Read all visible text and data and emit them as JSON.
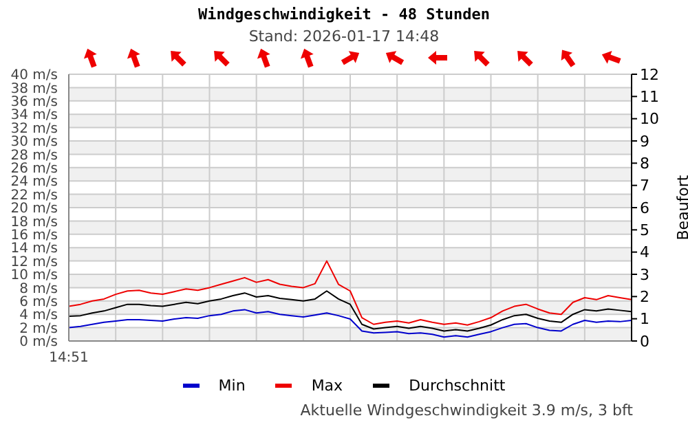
{
  "chart_data": {
    "type": "line",
    "title": "Windgeschwindigkeit - 48 Stunden",
    "subtitle": "Stand: 2026-01-17 14:48",
    "y2label": "Beaufort",
    "annotations": [
      "Aktuelle Windgeschwindigkeit 3.9 m/s, 3 bft"
    ],
    "categories": [
      "14:51",
      null,
      null,
      null,
      null,
      null,
      null,
      null,
      null,
      null,
      null,
      null,
      null,
      null,
      null,
      null,
      null,
      null,
      null,
      null,
      null,
      null,
      null,
      null,
      null,
      null,
      null,
      null,
      null,
      null,
      null,
      null,
      null,
      null,
      null,
      null,
      null,
      null,
      null,
      null,
      null,
      null,
      null,
      null,
      null,
      null,
      null,
      null,
      null
    ],
    "ylim": [
      0,
      40
    ],
    "yticks": [
      {
        "value": 0,
        "label": "0 m/s"
      },
      {
        "value": 2,
        "label": "2 m/s"
      },
      {
        "value": 4,
        "label": "4 m/s"
      },
      {
        "value": 6,
        "label": "6 m/s"
      },
      {
        "value": 8,
        "label": "8 m/s"
      },
      {
        "value": 10,
        "label": "10 m/s"
      },
      {
        "value": 12,
        "label": "12 m/s"
      },
      {
        "value": 14,
        "label": "14 m/s"
      },
      {
        "value": 16,
        "label": "16 m/s"
      },
      {
        "value": 18,
        "label": "18 m/s"
      },
      {
        "value": 20,
        "label": "20 m/s"
      },
      {
        "value": 22,
        "label": "22 m/s"
      },
      {
        "value": 24,
        "label": "24 m/s"
      },
      {
        "value": 26,
        "label": "26 m/s"
      },
      {
        "value": 28,
        "label": "28 m/s"
      },
      {
        "value": 30,
        "label": "30 m/s"
      },
      {
        "value": 32,
        "label": "32 m/s"
      },
      {
        "value": 34,
        "label": "34 m/s"
      },
      {
        "value": 36,
        "label": "36 m/s"
      },
      {
        "value": 38,
        "label": "38 m/s"
      },
      {
        "value": 40,
        "label": "40 m/s"
      }
    ],
    "y2lim": [
      0,
      12
    ],
    "y2ticks": [
      0,
      1,
      2,
      3,
      4,
      5,
      6,
      7,
      8,
      9,
      10,
      11,
      12
    ],
    "grid": true,
    "legend": "bottom",
    "marker": "none",
    "line_style": "solid",
    "series": [
      {
        "name": "Min",
        "color": "#0000cc",
        "values": [
          2,
          2.2,
          2.5,
          2.8,
          3,
          3.2,
          3.2,
          3.1,
          3,
          3.3,
          3.5,
          3.4,
          3.8,
          4,
          4.5,
          4.7,
          4.2,
          4.4,
          4,
          3.8,
          3.6,
          3.9,
          4.2,
          3.8,
          3.3,
          1.5,
          1.2,
          1.3,
          1.4,
          1.1,
          1.2,
          1,
          0.6,
          0.8,
          0.6,
          1,
          1.4,
          2,
          2.5,
          2.6,
          2,
          1.6,
          1.5,
          2.5,
          3.1,
          2.8,
          3,
          2.9,
          3.1
        ]
      },
      {
        "name": "Max",
        "color": "#ee0000",
        "values": [
          5.2,
          5.5,
          6,
          6.3,
          7,
          7.5,
          7.6,
          7.2,
          7,
          7.4,
          7.8,
          7.6,
          8,
          8.5,
          9,
          9.5,
          8.8,
          9.2,
          8.5,
          8.2,
          8,
          8.6,
          12,
          8.5,
          7.5,
          3.5,
          2.5,
          2.8,
          3,
          2.7,
          3.2,
          2.8,
          2.5,
          2.7,
          2.4,
          2.9,
          3.5,
          4.5,
          5.2,
          5.5,
          4.8,
          4.2,
          4,
          5.8,
          6.5,
          6.2,
          6.8,
          6.5,
          6.2
        ]
      },
      {
        "name": "Durchschnitt",
        "color": "#000000",
        "values": [
          3.7,
          3.8,
          4.2,
          4.5,
          5,
          5.5,
          5.5,
          5.3,
          5.2,
          5.5,
          5.8,
          5.6,
          6,
          6.3,
          6.8,
          7.2,
          6.6,
          6.8,
          6.4,
          6.2,
          6,
          6.3,
          7.5,
          6.3,
          5.5,
          2.5,
          1.8,
          2,
          2.2,
          1.9,
          2.2,
          1.9,
          1.5,
          1.7,
          1.5,
          1.9,
          2.4,
          3.2,
          3.8,
          4,
          3.4,
          3,
          2.8,
          4,
          4.7,
          4.5,
          4.8,
          4.6,
          4.4
        ]
      }
    ]
  }
}
